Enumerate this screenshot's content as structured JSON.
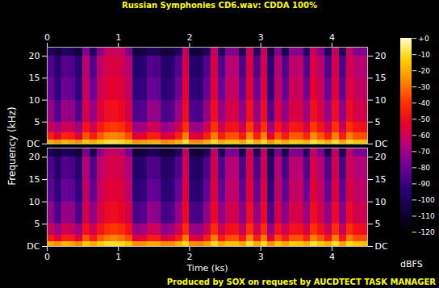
{
  "chart_data": {
    "type": "heatmap",
    "title": "Russian Symphonies CD6.wav: CDDA 100%",
    "caption": "Produced by SOX on request by AUCDTECT TASK MANAGER",
    "x_label": "Time (ks)",
    "y_label": "Frequency (kHz)",
    "xlim": [
      0,
      4.5
    ],
    "xticks": [
      0,
      1,
      2,
      3,
      4
    ],
    "ylim": [
      0,
      22.05
    ],
    "yticks": [
      {
        "value": 0,
        "label": "DC"
      },
      5,
      10,
      15,
      20
    ],
    "time_bins": [
      0,
      0.1,
      0.2,
      0.3,
      0.4,
      0.5,
      0.6,
      0.7,
      0.8,
      0.9,
      1,
      1.1,
      1.2,
      1.3,
      1.4,
      1.5,
      1.6,
      1.7,
      1.8,
      1.9,
      2,
      2.1,
      2.2,
      2.3,
      2.4,
      2.5,
      2.6,
      2.7,
      2.8,
      2.9,
      3,
      3.1,
      3.2,
      3.3,
      3.4,
      3.5,
      3.6,
      3.7,
      3.8,
      3.9,
      4,
      4.1,
      4.2,
      4.3,
      4.4,
      4.5
    ],
    "frequency_bins": [
      0,
      1,
      2.5,
      5,
      10,
      15,
      20,
      22.05
    ],
    "colors": [
      "#000000",
      "#14003c",
      "#2c0078",
      "#6a0096",
      "#b4007a",
      "#e8002a",
      "#ff3000",
      "#ff8800",
      "#ffd000",
      "#ffffc8"
    ],
    "colorbar": {
      "range": [
        -120,
        0
      ],
      "ticks": [
        {
          "value": 0,
          "label": "+0"
        },
        -10,
        -20,
        -30,
        -40,
        -50,
        -60,
        -70,
        -80,
        -90,
        -100,
        -110,
        -120
      ],
      "label": "dBFS"
    },
    "series": [
      {
        "values": [
          [
            -20,
            -25,
            -18,
            -21,
            -26,
            -15,
            -20,
            -14,
            -10,
            -9,
            -11,
            -15,
            -26,
            -24,
            -21,
            -20,
            -27,
            -25,
            -19,
            -10,
            -26,
            -27,
            -21,
            -11,
            -20,
            -16,
            -15,
            -21,
            -10,
            -20,
            -11,
            -25,
            -15,
            -21,
            -14,
            -15,
            -19,
            -9,
            -14,
            -20,
            -10,
            -21,
            -11,
            -15,
            -16
          ],
          [
            -45,
            -55,
            -44,
            -46,
            -56,
            -35,
            -45,
            -34,
            -28,
            -27,
            -29,
            -36,
            -56,
            -54,
            -45,
            -46,
            -57,
            -55,
            -44,
            -28,
            -56,
            -57,
            -45,
            -28,
            -45,
            -36,
            -35,
            -46,
            -27,
            -45,
            -28,
            -55,
            -35,
            -46,
            -34,
            -35,
            -44,
            -27,
            -35,
            -45,
            -28,
            -46,
            -28,
            -35,
            -36
          ],
          [
            -60,
            -70,
            -59,
            -61,
            -71,
            -48,
            -60,
            -47,
            -40,
            -39,
            -41,
            -49,
            -71,
            -70,
            -60,
            -61,
            -72,
            -70,
            -59,
            -40,
            -71,
            -72,
            -60,
            -40,
            -60,
            -49,
            -48,
            -61,
            -39,
            -60,
            -40,
            -70,
            -48,
            -61,
            -47,
            -48,
            -59,
            -39,
            -48,
            -60,
            -40,
            -61,
            -40,
            -48,
            -49
          ],
          [
            -72,
            -85,
            -71,
            -73,
            -86,
            -58,
            -72,
            -57,
            -50,
            -49,
            -51,
            -59,
            -86,
            -85,
            -72,
            -73,
            -87,
            -85,
            -71,
            -50,
            -86,
            -87,
            -72,
            -50,
            -72,
            -59,
            -58,
            -73,
            -49,
            -72,
            -50,
            -85,
            -58,
            -73,
            -57,
            -58,
            -71,
            -49,
            -58,
            -72,
            -50,
            -73,
            -50,
            -58,
            -59
          ],
          [
            -80,
            -92,
            -79,
            -81,
            -93,
            -62,
            -80,
            -61,
            -55,
            -54,
            -56,
            -63,
            -93,
            -92,
            -80,
            -81,
            -94,
            -92,
            -79,
            -55,
            -93,
            -94,
            -80,
            -55,
            -80,
            -63,
            -62,
            -81,
            -54,
            -80,
            -55,
            -92,
            -62,
            -81,
            -61,
            -62,
            -79,
            -54,
            -62,
            -80,
            -55,
            -81,
            -55,
            -62,
            -63
          ],
          [
            -85,
            -95,
            -84,
            -86,
            -96,
            -65,
            -85,
            -64,
            -58,
            -57,
            -59,
            -66,
            -96,
            -95,
            -85,
            -86,
            -97,
            -95,
            -84,
            -58,
            -96,
            -97,
            -85,
            -58,
            -85,
            -66,
            -65,
            -86,
            -57,
            -85,
            -58,
            -95,
            -65,
            -86,
            -64,
            -65,
            -84,
            -57,
            -65,
            -85,
            -58,
            -86,
            -58,
            -65,
            -66
          ],
          [
            -100,
            -105,
            -99,
            -101,
            -106,
            -75,
            -100,
            -74,
            -62,
            -61,
            -63,
            -76,
            -106,
            -105,
            -100,
            -101,
            -107,
            -105,
            -99,
            -62,
            -106,
            -107,
            -100,
            -62,
            -100,
            -76,
            -75,
            -101,
            -61,
            -100,
            -62,
            -105,
            -75,
            -101,
            -74,
            -75,
            -99,
            -61,
            -75,
            -100,
            -62,
            -101,
            -62,
            -75,
            -76
          ]
        ]
      },
      {
        "values": [
          [
            -21,
            -25,
            -19,
            -21,
            -27,
            -15,
            -21,
            -14,
            -10,
            -10,
            -11,
            -16,
            -26,
            -25,
            -21,
            -21,
            -27,
            -26,
            -19,
            -11,
            -26,
            -27,
            -22,
            -11,
            -21,
            -16,
            -16,
            -21,
            -10,
            -21,
            -11,
            -26,
            -15,
            -22,
            -14,
            -16,
            -19,
            -9,
            -15,
            -20,
            -10,
            -22,
            -11,
            -15,
            -17
          ],
          [
            -46,
            -55,
            -45,
            -46,
            -57,
            -35,
            -46,
            -34,
            -29,
            -27,
            -30,
            -36,
            -57,
            -54,
            -46,
            -46,
            -58,
            -55,
            -45,
            -29,
            -56,
            -58,
            -45,
            -29,
            -46,
            -37,
            -35,
            -47,
            -28,
            -45,
            -29,
            -56,
            -36,
            -46,
            -35,
            -35,
            -45,
            -28,
            -35,
            -46,
            -28,
            -47,
            -29,
            -36,
            -36
          ],
          [
            -61,
            -71,
            -59,
            -62,
            -71,
            -49,
            -60,
            -48,
            -41,
            -39,
            -42,
            -49,
            -72,
            -70,
            -61,
            -61,
            -73,
            -71,
            -60,
            -41,
            -71,
            -73,
            -61,
            -41,
            -60,
            -50,
            -49,
            -62,
            -40,
            -61,
            -41,
            -71,
            -49,
            -61,
            -48,
            -49,
            -60,
            -40,
            -49,
            -61,
            -41,
            -62,
            -41,
            -49,
            -50
          ],
          [
            -73,
            -86,
            -72,
            -73,
            -87,
            -59,
            -73,
            -58,
            -51,
            -50,
            -52,
            -59,
            -87,
            -85,
            -73,
            -74,
            -88,
            -86,
            -72,
            -51,
            -87,
            -88,
            -73,
            -51,
            -73,
            -60,
            -59,
            -74,
            -50,
            -73,
            -51,
            -86,
            -59,
            -74,
            -58,
            -59,
            -72,
            -50,
            -59,
            -73,
            -51,
            -74,
            -51,
            -59,
            -60
          ],
          [
            -81,
            -93,
            -80,
            -82,
            -93,
            -63,
            -81,
            -62,
            -56,
            -55,
            -57,
            -64,
            -94,
            -92,
            -81,
            -82,
            -95,
            -93,
            -80,
            -56,
            -94,
            -95,
            -81,
            -56,
            -81,
            -64,
            -63,
            -82,
            -55,
            -81,
            -56,
            -93,
            -63,
            -82,
            -62,
            -63,
            -80,
            -55,
            -63,
            -81,
            -56,
            -82,
            -56,
            -63,
            -64
          ],
          [
            -86,
            -96,
            -85,
            -87,
            -97,
            -66,
            -86,
            -65,
            -59,
            -58,
            -60,
            -67,
            -97,
            -96,
            -86,
            -87,
            -98,
            -96,
            -85,
            -59,
            -97,
            -98,
            -86,
            -59,
            -86,
            -67,
            -66,
            -87,
            -58,
            -86,
            -59,
            -96,
            -66,
            -87,
            -65,
            -66,
            -85,
            -58,
            -66,
            -86,
            -59,
            -87,
            -59,
            -66,
            -67
          ],
          [
            -101,
            -106,
            -100,
            -102,
            -107,
            -76,
            -101,
            -75,
            -63,
            -62,
            -64,
            -77,
            -107,
            -106,
            -101,
            -102,
            -108,
            -106,
            -100,
            -63,
            -107,
            -108,
            -101,
            -63,
            -101,
            -77,
            -76,
            -102,
            -62,
            -101,
            -63,
            -106,
            -76,
            -102,
            -75,
            -76,
            -100,
            -62,
            -76,
            -101,
            -63,
            -102,
            -63,
            -76,
            -77
          ]
        ]
      }
    ]
  }
}
